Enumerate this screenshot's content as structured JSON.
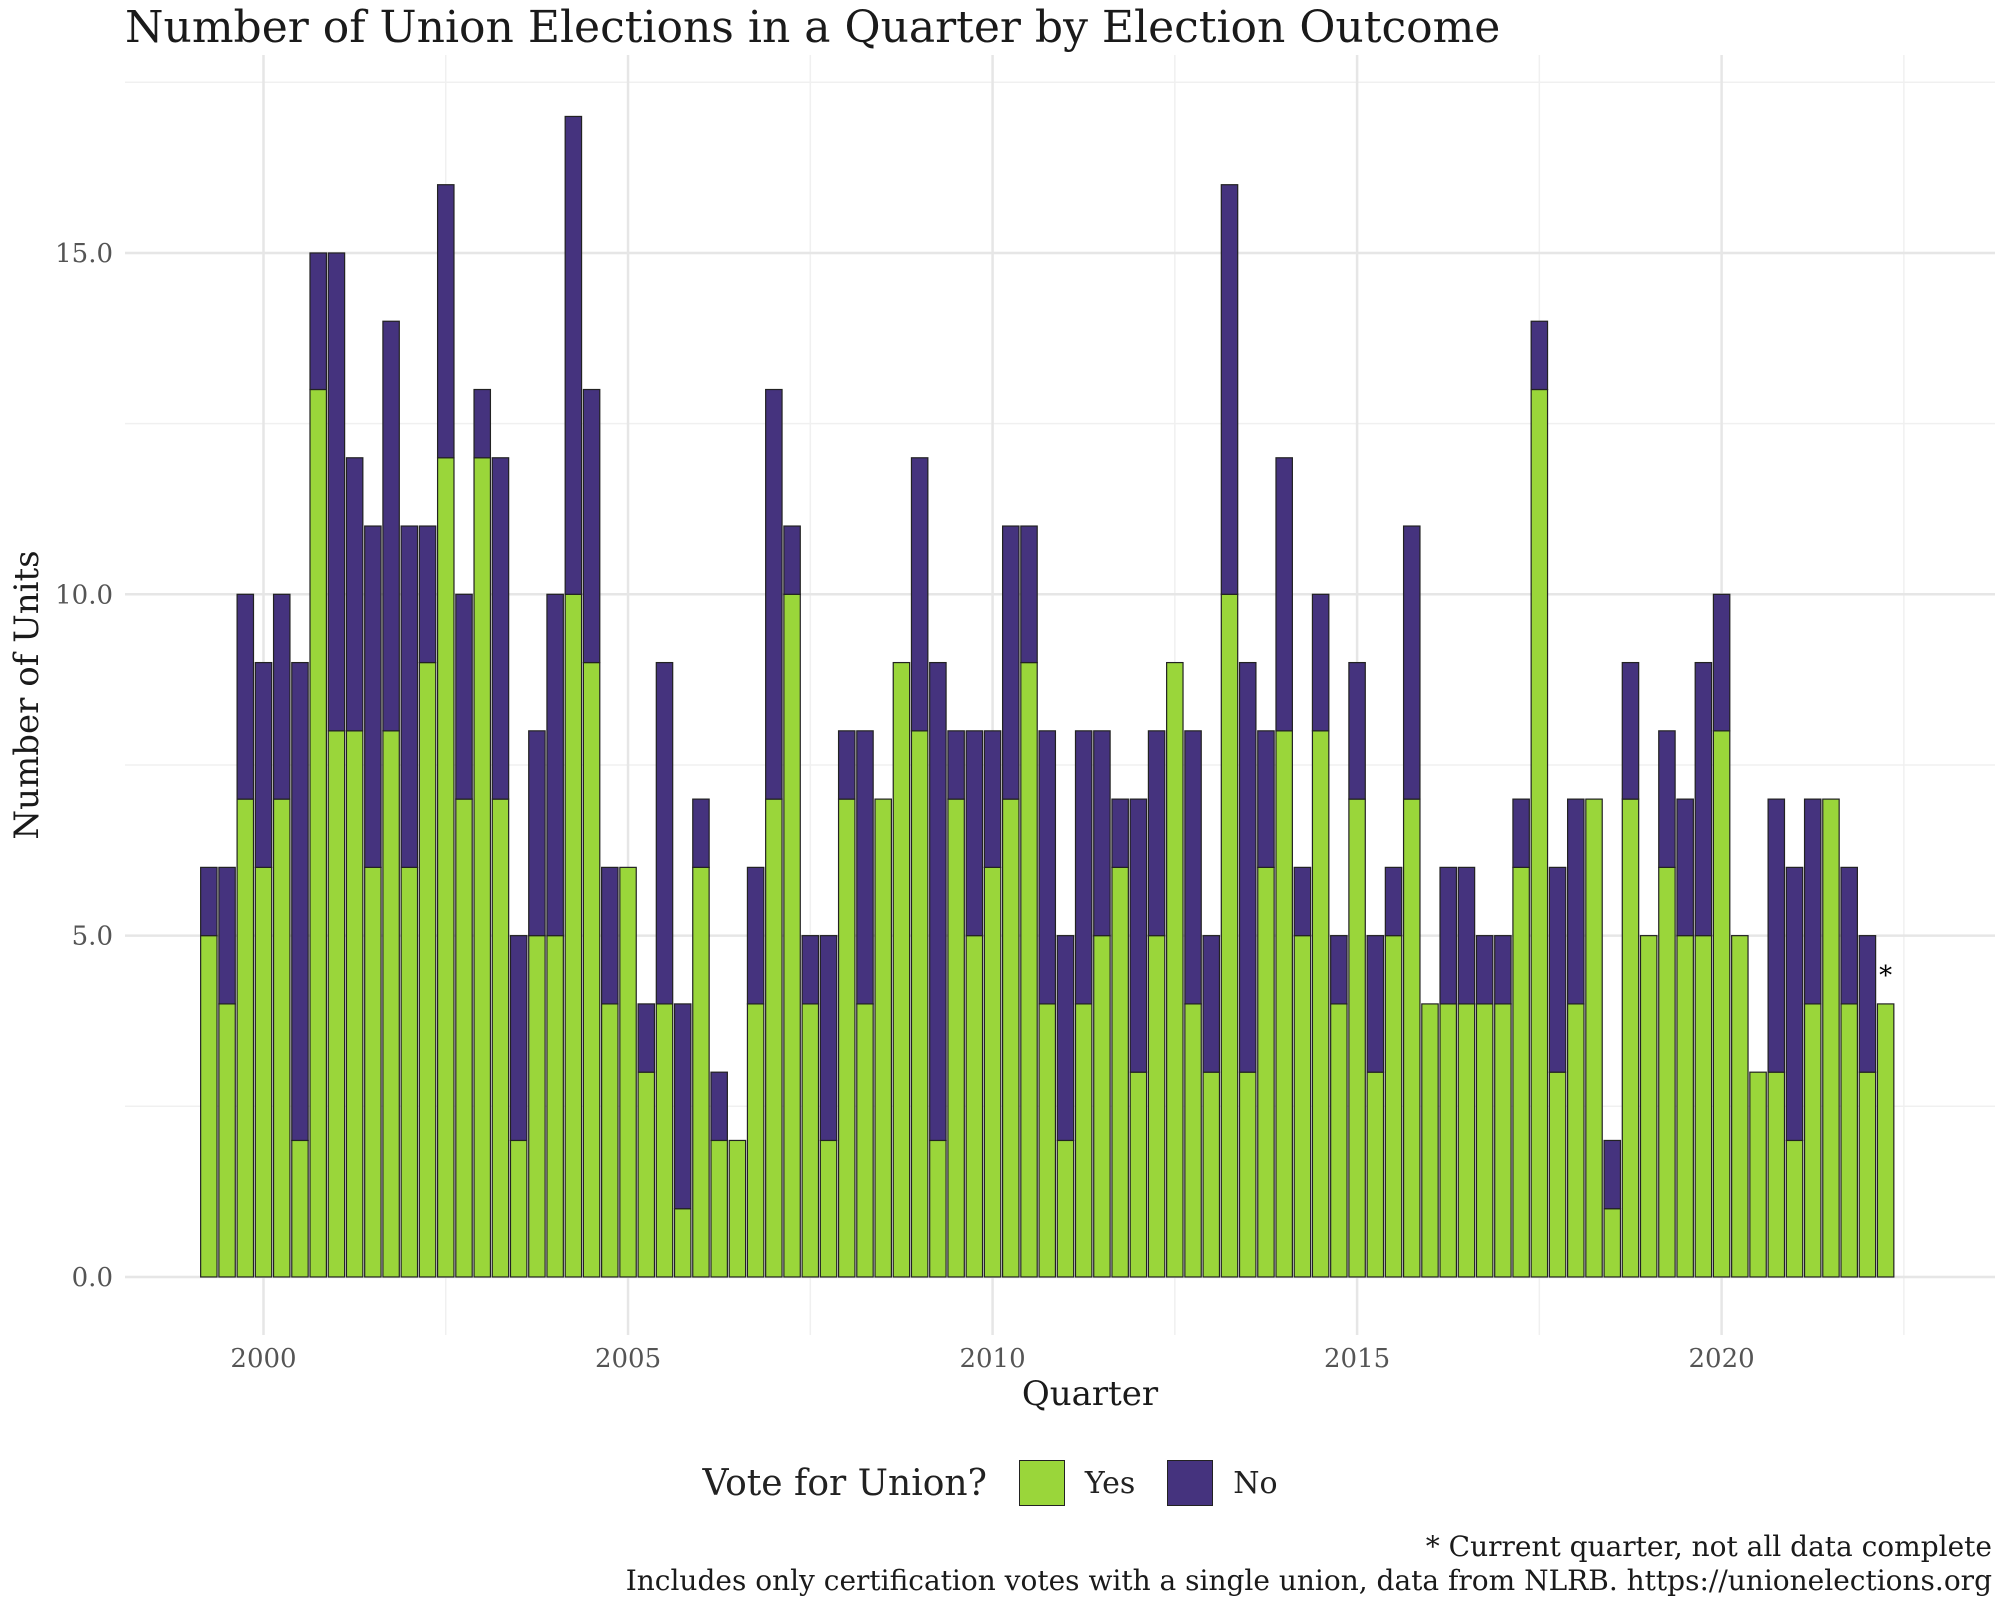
{
  "chart_data": {
    "type": "bar",
    "stacked": true,
    "title": "Number of Union Elections in a Quarter by Election Outcome",
    "xlabel": "Quarter",
    "ylabel": "Number of Units",
    "xlim": [
      1998.1,
      2023.75
    ],
    "ylim": [
      -0.85,
      17.9
    ],
    "x_start": 1999.25,
    "x_step": 0.25,
    "x_ticks": [
      2000,
      2005,
      2010,
      2015,
      2020
    ],
    "x_tick_labels": [
      "2000",
      "2005",
      "2010",
      "2015",
      "2020"
    ],
    "y_ticks": [
      0,
      5,
      10,
      15
    ],
    "y_tick_labels": [
      "0.0",
      "5.0",
      "10.0",
      "15.0"
    ],
    "grid": true,
    "legend": {
      "title": "Vote for Union?",
      "position": "bottom"
    },
    "series": [
      {
        "name": "Yes",
        "color": "#9ad63a",
        "values": [
          5,
          4,
          7,
          6,
          7,
          2,
          13,
          8,
          8,
          6,
          8,
          6,
          9,
          12,
          7,
          12,
          7,
          2,
          5,
          5,
          10,
          9,
          4,
          6,
          3,
          4,
          1,
          6,
          2,
          2,
          4,
          7,
          10,
          4,
          2,
          7,
          4,
          7,
          9,
          8,
          2,
          7,
          5,
          6,
          7,
          9,
          4,
          2,
          4,
          5,
          6,
          3,
          5,
          9,
          4,
          3,
          10,
          3,
          6,
          8,
          5,
          8,
          4,
          7,
          3,
          5,
          7,
          4,
          4,
          4,
          4,
          4,
          6,
          13,
          3,
          4,
          7,
          1,
          7,
          5,
          6,
          5,
          5,
          8,
          5,
          3,
          3,
          2,
          4,
          7,
          4,
          3,
          4
        ]
      },
      {
        "name": "No",
        "color": "#45337e",
        "values": [
          1,
          2,
          3,
          3,
          3,
          7,
          2,
          7,
          4,
          5,
          6,
          5,
          2,
          4,
          3,
          1,
          5,
          3,
          3,
          5,
          7,
          4,
          2,
          0,
          1,
          5,
          3,
          1,
          1,
          0,
          2,
          6,
          1,
          1,
          3,
          1,
          4,
          0,
          0,
          4,
          7,
          1,
          3,
          2,
          4,
          2,
          4,
          3,
          4,
          3,
          1,
          4,
          3,
          0,
          4,
          2,
          6,
          6,
          2,
          4,
          1,
          2,
          1,
          2,
          2,
          1,
          4,
          0,
          2,
          2,
          1,
          1,
          1,
          1,
          3,
          3,
          0,
          1,
          2,
          0,
          2,
          2,
          4,
          2,
          0,
          0,
          4,
          4,
          3,
          0,
          2,
          2,
          0
        ]
      }
    ],
    "annotations": [
      {
        "text": "*",
        "x": 2022.25,
        "y": 4.5
      }
    ]
  },
  "legend_labels": {
    "title": "Vote for Union?",
    "yes": "Yes",
    "no": "No"
  },
  "caption": {
    "line1": "* Current quarter, not all data complete",
    "line2": "Includes only certification votes with a single union, data from NLRB. https://unionelections.org"
  }
}
